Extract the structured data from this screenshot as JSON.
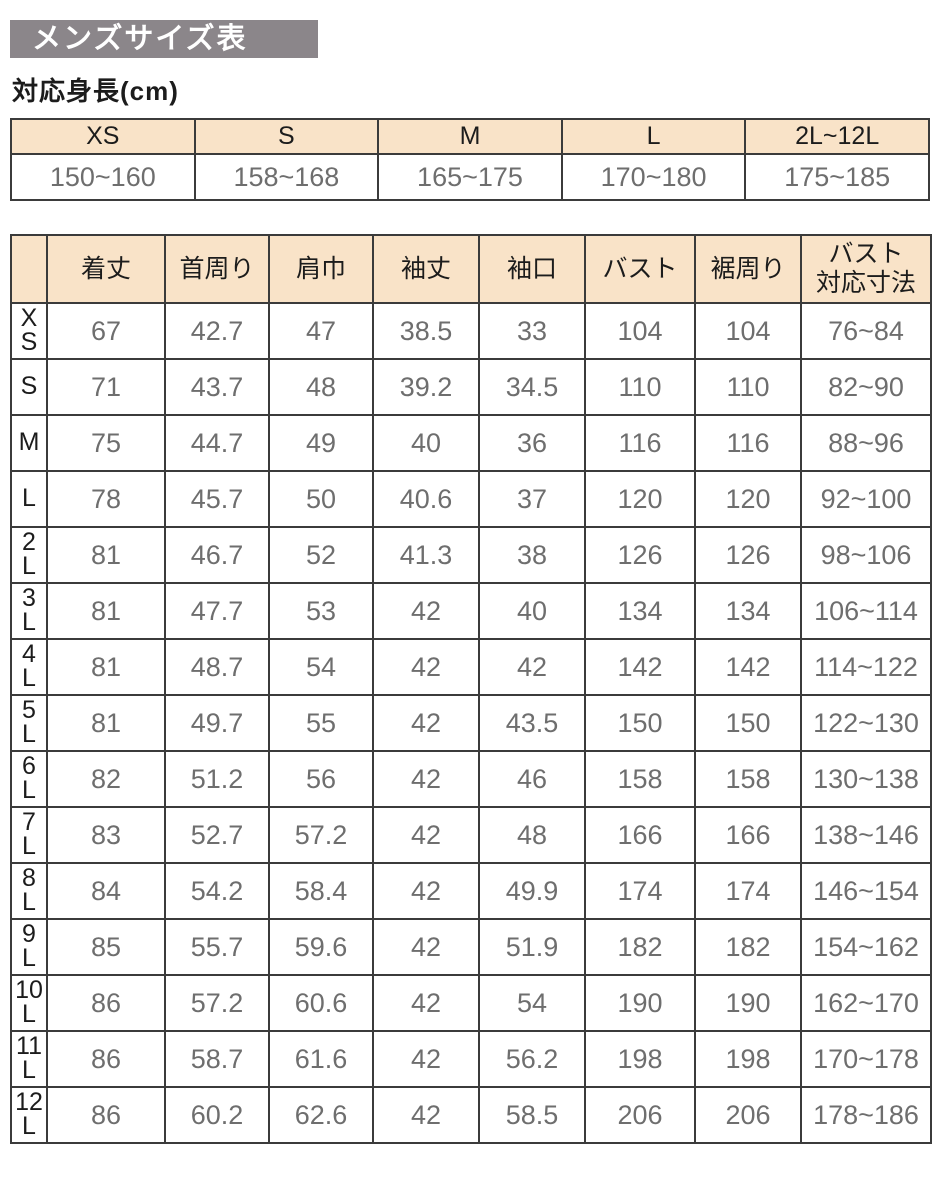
{
  "title": "メンズサイズ表",
  "subtitle": "対応身長(cm)",
  "colors": {
    "title_bg": "#8b868a",
    "title_text": "#ffffff",
    "header_bg": "#f9e3c8",
    "border": "#3b3b3b",
    "data_text": "#6e6e6e",
    "label_text": "#1c1c1c"
  },
  "height_table": {
    "columns": [
      {
        "size": "XS",
        "height": "150~160"
      },
      {
        "size": "S",
        "height": "158~168"
      },
      {
        "size": "M",
        "height": "165~175"
      },
      {
        "size": "L",
        "height": "170~180"
      },
      {
        "size": "2L~12L",
        "height": "175~185"
      }
    ]
  },
  "size_table": {
    "headers": [
      "",
      "着丈",
      "首周り",
      "肩巾",
      "袖丈",
      "袖口",
      "バスト",
      "裾周り",
      "バスト\n対応寸法"
    ],
    "rows": [
      {
        "label": "XS",
        "values": [
          "67",
          "42.7",
          "47",
          "38.5",
          "33",
          "104",
          "104",
          "76~84"
        ]
      },
      {
        "label": "S",
        "values": [
          "71",
          "43.7",
          "48",
          "39.2",
          "34.5",
          "110",
          "110",
          "82~90"
        ]
      },
      {
        "label": "M",
        "values": [
          "75",
          "44.7",
          "49",
          "40",
          "36",
          "116",
          "116",
          "88~96"
        ]
      },
      {
        "label": "L",
        "values": [
          "78",
          "45.7",
          "50",
          "40.6",
          "37",
          "120",
          "120",
          "92~100"
        ]
      },
      {
        "label": "2L",
        "values": [
          "81",
          "46.7",
          "52",
          "41.3",
          "38",
          "126",
          "126",
          "98~106"
        ]
      },
      {
        "label": "3L",
        "values": [
          "81",
          "47.7",
          "53",
          "42",
          "40",
          "134",
          "134",
          "106~114"
        ]
      },
      {
        "label": "4L",
        "values": [
          "81",
          "48.7",
          "54",
          "42",
          "42",
          "142",
          "142",
          "114~122"
        ]
      },
      {
        "label": "5L",
        "values": [
          "81",
          "49.7",
          "55",
          "42",
          "43.5",
          "150",
          "150",
          "122~130"
        ]
      },
      {
        "label": "6L",
        "values": [
          "82",
          "51.2",
          "56",
          "42",
          "46",
          "158",
          "158",
          "130~138"
        ]
      },
      {
        "label": "7L",
        "values": [
          "83",
          "52.7",
          "57.2",
          "42",
          "48",
          "166",
          "166",
          "138~146"
        ]
      },
      {
        "label": "8L",
        "values": [
          "84",
          "54.2",
          "58.4",
          "42",
          "49.9",
          "174",
          "174",
          "146~154"
        ]
      },
      {
        "label": "9L",
        "values": [
          "85",
          "55.7",
          "59.6",
          "42",
          "51.9",
          "182",
          "182",
          "154~162"
        ]
      },
      {
        "label": "10L",
        "values": [
          "86",
          "57.2",
          "60.6",
          "42",
          "54",
          "190",
          "190",
          "162~170"
        ]
      },
      {
        "label": "11L",
        "values": [
          "86",
          "58.7",
          "61.6",
          "42",
          "56.2",
          "198",
          "198",
          "170~178"
        ]
      },
      {
        "label": "12L",
        "values": [
          "86",
          "60.2",
          "62.6",
          "42",
          "58.5",
          "206",
          "206",
          "178~186"
        ]
      }
    ]
  }
}
